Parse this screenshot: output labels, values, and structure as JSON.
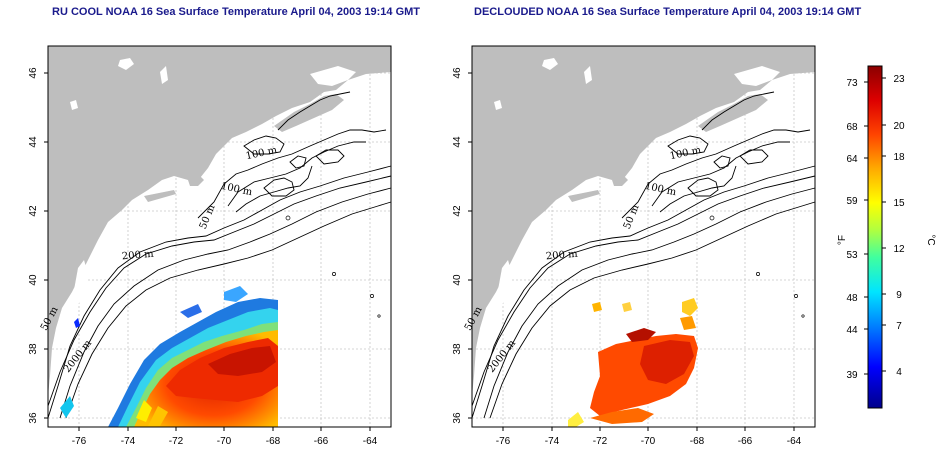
{
  "titles": {
    "left": "RU COOL NOAA 16 Sea Surface Temperature April 04, 2003 19:14 GMT",
    "right": "DECLOUDED NOAA 16 Sea Surface Temperature April 04, 2003 19:14 GMT"
  },
  "axes": {
    "x_ticks": [
      "-76",
      "-74",
      "-72",
      "-70",
      "-68",
      "-66",
      "-64"
    ],
    "y_ticks": [
      "36",
      "38",
      "40",
      "42",
      "44",
      "46"
    ]
  },
  "contour_labels": {
    "c100a": "100 m",
    "c100b": "100 m",
    "c50a": "50 m",
    "c200": "200 m",
    "c50b": "50 m",
    "c2000": "2000 m"
  },
  "colorbar": {
    "f_label": "°F",
    "c_label": "°C",
    "f_ticks": [
      "73",
      "68",
      "64",
      "59",
      "53",
      "48",
      "44",
      "39"
    ],
    "c_ticks": [
      "23",
      "20",
      "18",
      "15",
      "12",
      "9",
      "7",
      "4"
    ],
    "colors": [
      "#00008b",
      "#0000ff",
      "#0080ff",
      "#00e5ff",
      "#40ff9f",
      "#b0ff40",
      "#ffff00",
      "#ffaa00",
      "#ff4400",
      "#dd0000",
      "#8b0000"
    ]
  },
  "colors": {
    "land": "#bebebe",
    "grid": "#c8c8c8",
    "contour": "#000000",
    "title": "#1a1a8c"
  }
}
